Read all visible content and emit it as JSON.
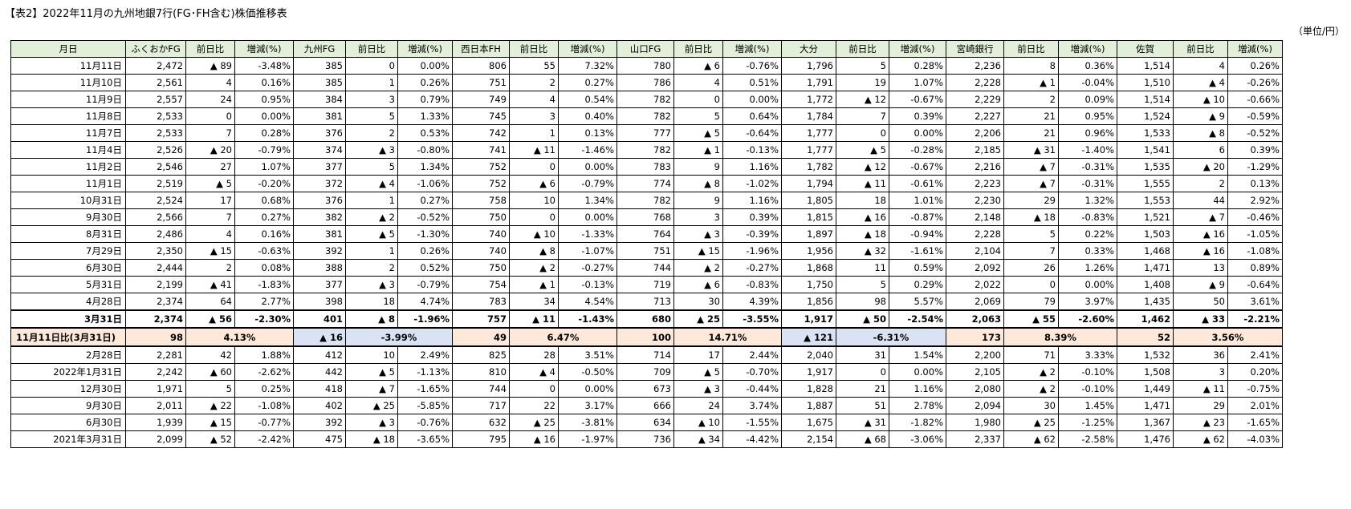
{
  "title": "【表2】2022年11月の九州地銀7行(FG･FH含む)株価推移表",
  "unit": "（単位/円）",
  "header": {
    "date": "月日",
    "banks": [
      "ふくおかFG",
      "九州FG",
      "西日本FH",
      "山口FG",
      "大分",
      "宮崎銀行",
      "佐賀"
    ],
    "diff": "前日比",
    "pct": "増減(%)"
  },
  "rows_top": [
    {
      "date": "11月11日",
      "cells": [
        "2,472",
        "▲ 89",
        "-3.48%",
        "385",
        "0",
        "0.00%",
        "806",
        "55",
        "7.32%",
        "780",
        "▲ 6",
        "-0.76%",
        "1,796",
        "5",
        "0.28%",
        "2,236",
        "8",
        "0.36%",
        "1,514",
        "4",
        "0.26%"
      ]
    },
    {
      "date": "11月10日",
      "cells": [
        "2,561",
        "4",
        "0.16%",
        "385",
        "1",
        "0.26%",
        "751",
        "2",
        "0.27%",
        "786",
        "4",
        "0.51%",
        "1,791",
        "19",
        "1.07%",
        "2,228",
        "▲ 1",
        "-0.04%",
        "1,510",
        "▲ 4",
        "-0.26%"
      ]
    },
    {
      "date": "11月9日",
      "cells": [
        "2,557",
        "24",
        "0.95%",
        "384",
        "3",
        "0.79%",
        "749",
        "4",
        "0.54%",
        "782",
        "0",
        "0.00%",
        "1,772",
        "▲ 12",
        "-0.67%",
        "2,229",
        "2",
        "0.09%",
        "1,514",
        "▲ 10",
        "-0.66%"
      ]
    },
    {
      "date": "11月8日",
      "cells": [
        "2,533",
        "0",
        "0.00%",
        "381",
        "5",
        "1.33%",
        "745",
        "3",
        "0.40%",
        "782",
        "5",
        "0.64%",
        "1,784",
        "7",
        "0.39%",
        "2,227",
        "21",
        "0.95%",
        "1,524",
        "▲ 9",
        "-0.59%"
      ]
    },
    {
      "date": "11月7日",
      "cells": [
        "2,533",
        "7",
        "0.28%",
        "376",
        "2",
        "0.53%",
        "742",
        "1",
        "0.13%",
        "777",
        "▲ 5",
        "-0.64%",
        "1,777",
        "0",
        "0.00%",
        "2,206",
        "21",
        "0.96%",
        "1,533",
        "▲ 8",
        "-0.52%"
      ]
    },
    {
      "date": "11月4日",
      "cells": [
        "2,526",
        "▲ 20",
        "-0.79%",
        "374",
        "▲ 3",
        "-0.80%",
        "741",
        "▲ 11",
        "-1.46%",
        "782",
        "▲ 1",
        "-0.13%",
        "1,777",
        "▲ 5",
        "-0.28%",
        "2,185",
        "▲ 31",
        "-1.40%",
        "1,541",
        "6",
        "0.39%"
      ]
    },
    {
      "date": "11月2日",
      "cells": [
        "2,546",
        "27",
        "1.07%",
        "377",
        "5",
        "1.34%",
        "752",
        "0",
        "0.00%",
        "783",
        "9",
        "1.16%",
        "1,782",
        "▲ 12",
        "-0.67%",
        "2,216",
        "▲ 7",
        "-0.31%",
        "1,535",
        "▲ 20",
        "-1.29%"
      ]
    },
    {
      "date": "11月1日",
      "cells": [
        "2,519",
        "▲ 5",
        "-0.20%",
        "372",
        "▲ 4",
        "-1.06%",
        "752",
        "▲ 6",
        "-0.79%",
        "774",
        "▲ 8",
        "-1.02%",
        "1,794",
        "▲ 11",
        "-0.61%",
        "2,223",
        "▲ 7",
        "-0.31%",
        "1,555",
        "2",
        "0.13%"
      ]
    },
    {
      "date": "10月31日",
      "cells": [
        "2,524",
        "17",
        "0.68%",
        "376",
        "1",
        "0.27%",
        "758",
        "10",
        "1.34%",
        "782",
        "9",
        "1.16%",
        "1,805",
        "18",
        "1.01%",
        "2,230",
        "29",
        "1.32%",
        "1,553",
        "44",
        "2.92%"
      ]
    },
    {
      "date": "9月30日",
      "cells": [
        "2,566",
        "7",
        "0.27%",
        "382",
        "▲ 2",
        "-0.52%",
        "750",
        "0",
        "0.00%",
        "768",
        "3",
        "0.39%",
        "1,815",
        "▲ 16",
        "-0.87%",
        "2,148",
        "▲ 18",
        "-0.83%",
        "1,521",
        "▲ 7",
        "-0.46%"
      ]
    },
    {
      "date": "8月31日",
      "cells": [
        "2,486",
        "4",
        "0.16%",
        "381",
        "▲ 5",
        "-1.30%",
        "740",
        "▲ 10",
        "-1.33%",
        "764",
        "▲ 3",
        "-0.39%",
        "1,897",
        "▲ 18",
        "-0.94%",
        "2,228",
        "5",
        "0.22%",
        "1,503",
        "▲ 16",
        "-1.05%"
      ]
    },
    {
      "date": "7月29日",
      "cells": [
        "2,350",
        "▲ 15",
        "-0.63%",
        "392",
        "1",
        "0.26%",
        "740",
        "▲ 8",
        "-1.07%",
        "751",
        "▲ 15",
        "-1.96%",
        "1,956",
        "▲ 32",
        "-1.61%",
        "2,104",
        "7",
        "0.33%",
        "1,468",
        "▲ 16",
        "-1.08%"
      ]
    },
    {
      "date": "6月30日",
      "cells": [
        "2,444",
        "2",
        "0.08%",
        "388",
        "2",
        "0.52%",
        "750",
        "▲ 2",
        "-0.27%",
        "744",
        "▲ 2",
        "-0.27%",
        "1,868",
        "11",
        "0.59%",
        "2,092",
        "26",
        "1.26%",
        "1,471",
        "13",
        "0.89%"
      ]
    },
    {
      "date": "5月31日",
      "cells": [
        "2,199",
        "▲ 41",
        "-1.83%",
        "377",
        "▲ 3",
        "-0.79%",
        "754",
        "▲ 1",
        "-0.13%",
        "719",
        "▲ 6",
        "-0.83%",
        "1,750",
        "5",
        "0.29%",
        "2,022",
        "0",
        "0.00%",
        "1,408",
        "▲ 9",
        "-0.64%"
      ]
    },
    {
      "date": "4月28日",
      "cells": [
        "2,374",
        "64",
        "2.77%",
        "398",
        "18",
        "4.74%",
        "783",
        "34",
        "4.54%",
        "713",
        "30",
        "4.39%",
        "1,856",
        "98",
        "5.57%",
        "2,069",
        "79",
        "3.97%",
        "1,435",
        "50",
        "3.61%"
      ]
    }
  ],
  "base_row": {
    "date": "3月31日",
    "cells": [
      "2,374",
      "▲ 56",
      "-2.30%",
      "401",
      "▲ 8",
      "-1.96%",
      "757",
      "▲ 11",
      "-1.43%",
      "680",
      "▲ 25",
      "-3.55%",
      "1,917",
      "▲ 50",
      "-2.54%",
      "2,063",
      "▲ 55",
      "-2.60%",
      "1,462",
      "▲ 33",
      "-2.21%"
    ]
  },
  "compare_row": {
    "label": "11月11日比(3月31日)",
    "cells": [
      {
        "diff": "98",
        "pct": "4.13%",
        "trend": "up"
      },
      {
        "diff": "▲ 16",
        "pct": "-3.99%",
        "trend": "down"
      },
      {
        "diff": "49",
        "pct": "6.47%",
        "trend": "up"
      },
      {
        "diff": "100",
        "pct": "14.71%",
        "trend": "up"
      },
      {
        "diff": "▲ 121",
        "pct": "-6.31%",
        "trend": "down"
      },
      {
        "diff": "173",
        "pct": "8.39%",
        "trend": "up"
      },
      {
        "diff": "52",
        "pct": "3.56%",
        "trend": "up"
      }
    ]
  },
  "rows_bottom": [
    {
      "date": "2月28日",
      "cells": [
        "2,281",
        "42",
        "1.88%",
        "412",
        "10",
        "2.49%",
        "825",
        "28",
        "3.51%",
        "714",
        "17",
        "2.44%",
        "2,040",
        "31",
        "1.54%",
        "2,200",
        "71",
        "3.33%",
        "1,532",
        "36",
        "2.41%"
      ]
    },
    {
      "date": "2022年1月31日",
      "cells": [
        "2,242",
        "▲ 60",
        "-2.62%",
        "442",
        "▲ 5",
        "-1.13%",
        "810",
        "▲ 4",
        "-0.50%",
        "709",
        "▲ 5",
        "-0.70%",
        "1,917",
        "0",
        "0.00%",
        "2,105",
        "▲ 2",
        "-0.10%",
        "1,508",
        "3",
        "0.20%"
      ]
    },
    {
      "date": "12月30日",
      "cells": [
        "1,971",
        "5",
        "0.25%",
        "418",
        "▲ 7",
        "-1.65%",
        "744",
        "0",
        "0.00%",
        "673",
        "▲ 3",
        "-0.44%",
        "1,828",
        "21",
        "1.16%",
        "2,080",
        "▲ 2",
        "-0.10%",
        "1,449",
        "▲ 11",
        "-0.75%"
      ]
    },
    {
      "date": "9月30日",
      "cells": [
        "2,011",
        "▲ 22",
        "-1.08%",
        "402",
        "▲ 25",
        "-5.85%",
        "717",
        "22",
        "3.17%",
        "666",
        "24",
        "3.74%",
        "1,887",
        "51",
        "2.78%",
        "2,094",
        "30",
        "1.45%",
        "1,471",
        "29",
        "2.01%"
      ]
    },
    {
      "date": "6月30日",
      "cells": [
        "1,939",
        "▲ 15",
        "-0.77%",
        "392",
        "▲ 3",
        "-0.76%",
        "632",
        "▲ 25",
        "-3.81%",
        "634",
        "▲ 10",
        "-1.55%",
        "1,675",
        "▲ 31",
        "-1.82%",
        "1,980",
        "▲ 25",
        "-1.25%",
        "1,367",
        "▲ 23",
        "-1.65%"
      ]
    },
    {
      "date": "2021年3月31日",
      "cells": [
        "2,099",
        "▲ 52",
        "-2.42%",
        "475",
        "▲ 18",
        "-3.65%",
        "795",
        "▲ 16",
        "-1.97%",
        "736",
        "▲ 34",
        "-4.42%",
        "2,154",
        "▲ 68",
        "-3.06%",
        "2,337",
        "▲ 62",
        "-2.58%",
        "1,476",
        "▲ 62",
        "-4.03%"
      ]
    }
  ]
}
